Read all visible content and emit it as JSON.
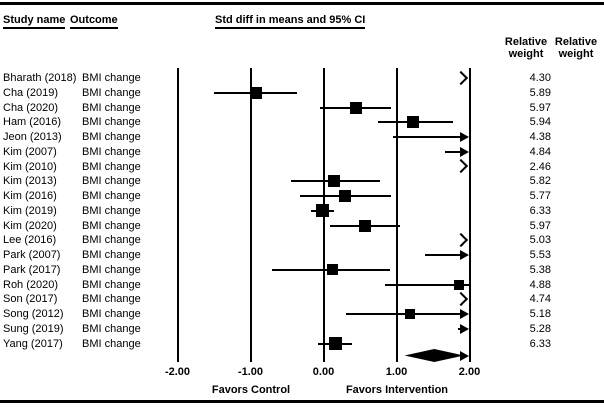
{
  "header": {
    "study_name": "Study name",
    "outcome": "Outcome",
    "plot_title": "Std diff in means and 95% CI",
    "weight_col1": {
      "line1": "Relative",
      "line2": "weight"
    },
    "weight_col2": {
      "line1": "Relative",
      "line2": "weight"
    }
  },
  "axis": {
    "ticks": [
      "-2.00",
      "-1.00",
      "0.00",
      "1.00",
      "2.00"
    ],
    "tick_values": [
      -2,
      -1,
      0,
      1,
      2
    ],
    "favors_left": "Favors Control",
    "favors_right": "Favors Intervention"
  },
  "colors": {
    "ink": "#000000",
    "background": "#ffffff"
  },
  "chart_data": {
    "type": "forest",
    "title": "Std diff in means and 95% CI",
    "x_label_left": "Favors Control",
    "x_label_right": "Favors Intervention",
    "xlim": [
      -2,
      2
    ],
    "x_ticks": [
      -2.0,
      -1.0,
      0.0,
      1.0,
      2.0
    ],
    "note_styles": "style square = point + CI line; arrow_line = CI extends beyond 2.00 with solid arrow, point off-scale; chevron = entire estimate off-scale right of 2.00",
    "studies": [
      {
        "name": "Bharath (2018)",
        "outcome": "BMI change",
        "weight": "4.30",
        "style": "chevron",
        "estimate": null,
        "ci_low": null,
        "ci_high": null
      },
      {
        "name": "Cha (2019)",
        "outcome": "BMI change",
        "weight": "5.89",
        "style": "square",
        "estimate": -0.93,
        "ci_low": -1.5,
        "ci_high": -0.36
      },
      {
        "name": "Cha (2020)",
        "outcome": "BMI change",
        "weight": "5.97",
        "style": "square",
        "estimate": 0.45,
        "ci_low": -0.05,
        "ci_high": 0.93
      },
      {
        "name": "Ham (2016)",
        "outcome": "BMI change",
        "weight": "5.94",
        "style": "square",
        "estimate": 1.23,
        "ci_low": 0.75,
        "ci_high": 1.78
      },
      {
        "name": "Jeon (2013)",
        "outcome": "BMI change",
        "weight": "4.38",
        "style": "arrow_line",
        "estimate": null,
        "ci_low": 0.95,
        "ci_high": 2.0
      },
      {
        "name": "Kim (2007)",
        "outcome": "BMI change",
        "weight": "4.84",
        "style": "arrow_line",
        "estimate": null,
        "ci_low": 1.66,
        "ci_high": 2.0
      },
      {
        "name": "Kim (2010)",
        "outcome": "BMI change",
        "weight": "2.46",
        "style": "chevron",
        "estimate": null,
        "ci_low": null,
        "ci_high": null
      },
      {
        "name": "Kim (2013)",
        "outcome": "BMI change",
        "weight": "5.82",
        "style": "square",
        "estimate": 0.15,
        "ci_low": -0.45,
        "ci_high": 0.77
      },
      {
        "name": "Kim (2016)",
        "outcome": "BMI change",
        "weight": "5.77",
        "style": "square",
        "estimate": 0.3,
        "ci_low": -0.32,
        "ci_high": 0.93
      },
      {
        "name": "Kim (2019)",
        "outcome": "BMI change",
        "weight": "6.33",
        "style": "square",
        "estimate": -0.02,
        "ci_low": -0.17,
        "ci_high": 0.15
      },
      {
        "name": "Kim (2020)",
        "outcome": "BMI change",
        "weight": "5.97",
        "style": "square",
        "estimate": 0.57,
        "ci_low": 0.09,
        "ci_high": 1.05
      },
      {
        "name": "Lee (2016)",
        "outcome": "BMI change",
        "weight": "5.03",
        "style": "chevron",
        "estimate": null,
        "ci_low": null,
        "ci_high": null
      },
      {
        "name": "Park (2007)",
        "outcome": "BMI change",
        "weight": "5.53",
        "style": "arrow_line",
        "estimate": null,
        "ci_low": 1.39,
        "ci_high": 2.0
      },
      {
        "name": "Park (2017)",
        "outcome": "BMI change",
        "weight": "5.38",
        "style": "square",
        "estimate": 0.13,
        "ci_low": -0.7,
        "ci_high": 0.91
      },
      {
        "name": "Roh (2020)",
        "outcome": "BMI change",
        "weight": "4.88",
        "style": "square",
        "estimate": 1.86,
        "ci_low": 0.84,
        "ci_high": 2.0
      },
      {
        "name": "Son (2017)",
        "outcome": "BMI change",
        "weight": "4.74",
        "style": "chevron",
        "estimate": null,
        "ci_low": null,
        "ci_high": null
      },
      {
        "name": "Song (2012)",
        "outcome": "BMI change",
        "weight": "5.18",
        "style": "square",
        "estimate": 1.19,
        "ci_low": 0.31,
        "ci_high": 2.0,
        "arrow_high": true
      },
      {
        "name": "Sung (2019)",
        "outcome": "BMI change",
        "weight": "5.28",
        "style": "arrow_line",
        "estimate": null,
        "ci_low": 1.84,
        "ci_high": 2.0
      },
      {
        "name": "Yang (2017)",
        "outcome": "BMI change",
        "weight": "6.33",
        "style": "square",
        "estimate": 0.17,
        "ci_low": -0.07,
        "ci_high": 0.39
      }
    ],
    "summary": {
      "shape": "diamond",
      "left": 1.11,
      "right": 2.0,
      "center": 1.55,
      "arrow_high": true
    }
  }
}
